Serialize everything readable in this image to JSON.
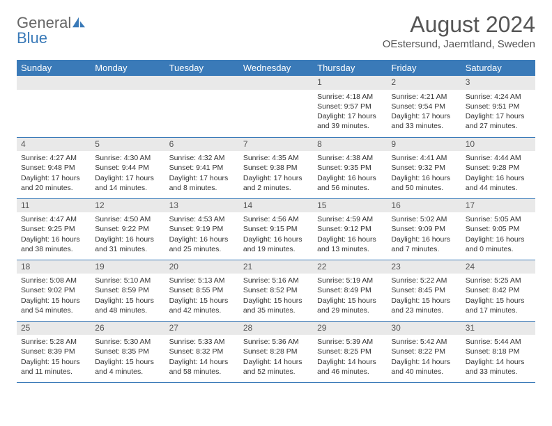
{
  "brand": {
    "word1": "General",
    "word2": "Blue"
  },
  "title": "August 2024",
  "location": "OEstersund, Jaemtland, Sweden",
  "colors": {
    "header_bg": "#3a7ab8",
    "header_text": "#ffffff",
    "daynum_bg": "#e9e9e9",
    "border": "#3a7ab8",
    "title_color": "#555555",
    "body_text": "#333333"
  },
  "day_headers": [
    "Sunday",
    "Monday",
    "Tuesday",
    "Wednesday",
    "Thursday",
    "Friday",
    "Saturday"
  ],
  "weeks": [
    [
      null,
      null,
      null,
      null,
      {
        "n": "1",
        "sr": "4:18 AM",
        "ss": "9:57 PM",
        "dl": "17 hours and 39 minutes."
      },
      {
        "n": "2",
        "sr": "4:21 AM",
        "ss": "9:54 PM",
        "dl": "17 hours and 33 minutes."
      },
      {
        "n": "3",
        "sr": "4:24 AM",
        "ss": "9:51 PM",
        "dl": "17 hours and 27 minutes."
      }
    ],
    [
      {
        "n": "4",
        "sr": "4:27 AM",
        "ss": "9:48 PM",
        "dl": "17 hours and 20 minutes."
      },
      {
        "n": "5",
        "sr": "4:30 AM",
        "ss": "9:44 PM",
        "dl": "17 hours and 14 minutes."
      },
      {
        "n": "6",
        "sr": "4:32 AM",
        "ss": "9:41 PM",
        "dl": "17 hours and 8 minutes."
      },
      {
        "n": "7",
        "sr": "4:35 AM",
        "ss": "9:38 PM",
        "dl": "17 hours and 2 minutes."
      },
      {
        "n": "8",
        "sr": "4:38 AM",
        "ss": "9:35 PM",
        "dl": "16 hours and 56 minutes."
      },
      {
        "n": "9",
        "sr": "4:41 AM",
        "ss": "9:32 PM",
        "dl": "16 hours and 50 minutes."
      },
      {
        "n": "10",
        "sr": "4:44 AM",
        "ss": "9:28 PM",
        "dl": "16 hours and 44 minutes."
      }
    ],
    [
      {
        "n": "11",
        "sr": "4:47 AM",
        "ss": "9:25 PM",
        "dl": "16 hours and 38 minutes."
      },
      {
        "n": "12",
        "sr": "4:50 AM",
        "ss": "9:22 PM",
        "dl": "16 hours and 31 minutes."
      },
      {
        "n": "13",
        "sr": "4:53 AM",
        "ss": "9:19 PM",
        "dl": "16 hours and 25 minutes."
      },
      {
        "n": "14",
        "sr": "4:56 AM",
        "ss": "9:15 PM",
        "dl": "16 hours and 19 minutes."
      },
      {
        "n": "15",
        "sr": "4:59 AM",
        "ss": "9:12 PM",
        "dl": "16 hours and 13 minutes."
      },
      {
        "n": "16",
        "sr": "5:02 AM",
        "ss": "9:09 PM",
        "dl": "16 hours and 7 minutes."
      },
      {
        "n": "17",
        "sr": "5:05 AM",
        "ss": "9:05 PM",
        "dl": "16 hours and 0 minutes."
      }
    ],
    [
      {
        "n": "18",
        "sr": "5:08 AM",
        "ss": "9:02 PM",
        "dl": "15 hours and 54 minutes."
      },
      {
        "n": "19",
        "sr": "5:10 AM",
        "ss": "8:59 PM",
        "dl": "15 hours and 48 minutes."
      },
      {
        "n": "20",
        "sr": "5:13 AM",
        "ss": "8:55 PM",
        "dl": "15 hours and 42 minutes."
      },
      {
        "n": "21",
        "sr": "5:16 AM",
        "ss": "8:52 PM",
        "dl": "15 hours and 35 minutes."
      },
      {
        "n": "22",
        "sr": "5:19 AM",
        "ss": "8:49 PM",
        "dl": "15 hours and 29 minutes."
      },
      {
        "n": "23",
        "sr": "5:22 AM",
        "ss": "8:45 PM",
        "dl": "15 hours and 23 minutes."
      },
      {
        "n": "24",
        "sr": "5:25 AM",
        "ss": "8:42 PM",
        "dl": "15 hours and 17 minutes."
      }
    ],
    [
      {
        "n": "25",
        "sr": "5:28 AM",
        "ss": "8:39 PM",
        "dl": "15 hours and 11 minutes."
      },
      {
        "n": "26",
        "sr": "5:30 AM",
        "ss": "8:35 PM",
        "dl": "15 hours and 4 minutes."
      },
      {
        "n": "27",
        "sr": "5:33 AM",
        "ss": "8:32 PM",
        "dl": "14 hours and 58 minutes."
      },
      {
        "n": "28",
        "sr": "5:36 AM",
        "ss": "8:28 PM",
        "dl": "14 hours and 52 minutes."
      },
      {
        "n": "29",
        "sr": "5:39 AM",
        "ss": "8:25 PM",
        "dl": "14 hours and 46 minutes."
      },
      {
        "n": "30",
        "sr": "5:42 AM",
        "ss": "8:22 PM",
        "dl": "14 hours and 40 minutes."
      },
      {
        "n": "31",
        "sr": "5:44 AM",
        "ss": "8:18 PM",
        "dl": "14 hours and 33 minutes."
      }
    ]
  ],
  "labels": {
    "sunrise": "Sunrise:",
    "sunset": "Sunset:",
    "daylight": "Daylight:"
  }
}
